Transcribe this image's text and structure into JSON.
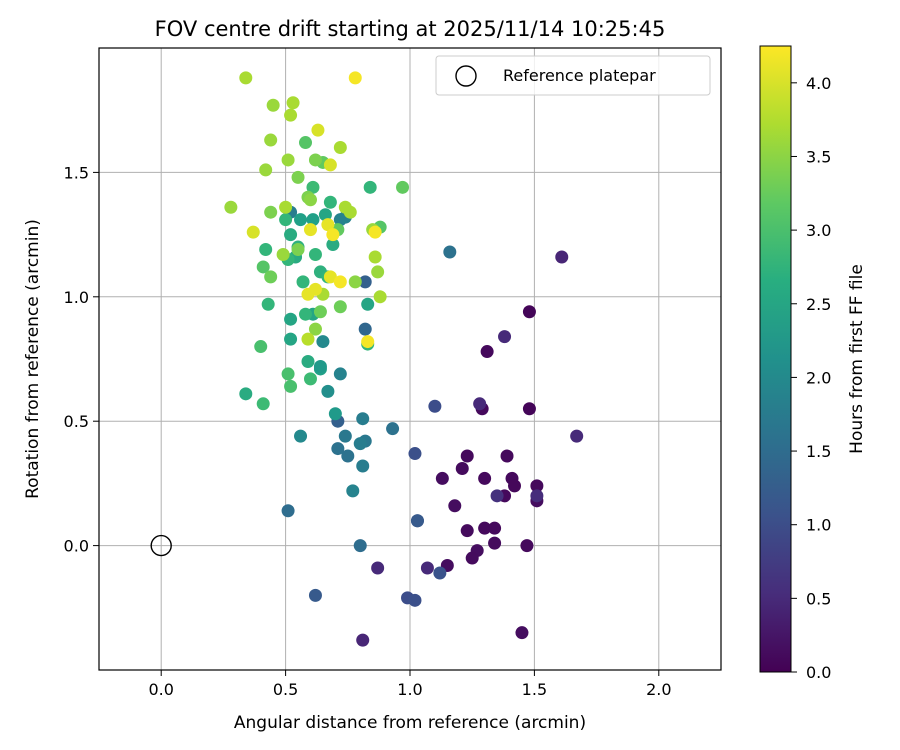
{
  "chart_data": {
    "type": "scatter",
    "title": "FOV centre drift starting at 2025/11/14 10:25:45",
    "xlabel": "Angular distance from reference (arcmin)",
    "ylabel": "Rotation from reference (arcmin)",
    "xlim": [
      -0.25,
      2.25
    ],
    "ylim": [
      -0.5,
      2.0
    ],
    "xticks": [
      "0.0",
      "0.5",
      "1.0",
      "1.5",
      "2.0"
    ],
    "yticks": [
      "0.0",
      "0.5",
      "1.0",
      "1.5"
    ],
    "grid": true,
    "legend": {
      "placement": "top-right",
      "label": "Reference platepar"
    },
    "reference_point": {
      "x": 0.0,
      "y": 0.0
    },
    "colorbar": {
      "label": "Hours from first FF file",
      "range": [
        0.0,
        4.25
      ],
      "ticks": [
        "0.0",
        "0.5",
        "1.0",
        "1.5",
        "2.0",
        "2.5",
        "3.0",
        "3.5",
        "4.0"
      ],
      "colormap": "viridis"
    },
    "points": [
      {
        "x": 1.48,
        "y": 0.94,
        "c": 0.05
      },
      {
        "x": 1.31,
        "y": 0.78,
        "c": 0.1
      },
      {
        "x": 1.48,
        "y": 0.55,
        "c": 0.05
      },
      {
        "x": 1.29,
        "y": 0.55,
        "c": 0.1
      },
      {
        "x": 1.39,
        "y": 0.36,
        "c": 0.1
      },
      {
        "x": 1.23,
        "y": 0.36,
        "c": 0.1
      },
      {
        "x": 1.21,
        "y": 0.31,
        "c": 0.12
      },
      {
        "x": 1.13,
        "y": 0.27,
        "c": 0.15
      },
      {
        "x": 1.3,
        "y": 0.27,
        "c": 0.1
      },
      {
        "x": 1.41,
        "y": 0.27,
        "c": 0.1
      },
      {
        "x": 1.42,
        "y": 0.24,
        "c": 0.08
      },
      {
        "x": 1.51,
        "y": 0.24,
        "c": 0.1
      },
      {
        "x": 1.38,
        "y": 0.2,
        "c": 0.1
      },
      {
        "x": 1.51,
        "y": 0.18,
        "c": 0.15
      },
      {
        "x": 1.18,
        "y": 0.16,
        "c": 0.15
      },
      {
        "x": 1.23,
        "y": 0.06,
        "c": 0.12
      },
      {
        "x": 1.3,
        "y": 0.07,
        "c": 0.1
      },
      {
        "x": 1.34,
        "y": 0.07,
        "c": 0.1
      },
      {
        "x": 1.34,
        "y": 0.01,
        "c": 0.12
      },
      {
        "x": 1.47,
        "y": 0.0,
        "c": 0.1
      },
      {
        "x": 1.27,
        "y": -0.02,
        "c": 0.15
      },
      {
        "x": 1.25,
        "y": -0.05,
        "c": 0.12
      },
      {
        "x": 1.15,
        "y": -0.08,
        "c": 0.15
      },
      {
        "x": 1.45,
        "y": -0.35,
        "c": 0.15
      },
      {
        "x": 1.61,
        "y": 1.16,
        "c": 0.45
      },
      {
        "x": 1.38,
        "y": 0.84,
        "c": 0.5
      },
      {
        "x": 1.28,
        "y": 0.57,
        "c": 0.5
      },
      {
        "x": 1.67,
        "y": 0.44,
        "c": 0.5
      },
      {
        "x": 1.51,
        "y": 0.2,
        "c": 0.55
      },
      {
        "x": 1.35,
        "y": 0.2,
        "c": 0.6
      },
      {
        "x": 1.07,
        "y": -0.09,
        "c": 0.5
      },
      {
        "x": 0.87,
        "y": -0.09,
        "c": 0.5
      },
      {
        "x": 0.81,
        "y": -0.38,
        "c": 0.45
      },
      {
        "x": 1.1,
        "y": 0.56,
        "c": 1.0
      },
      {
        "x": 1.02,
        "y": 0.37,
        "c": 1.05
      },
      {
        "x": 1.03,
        "y": 0.1,
        "c": 1.1
      },
      {
        "x": 1.03,
        "y": 0.1,
        "c": 1.2
      },
      {
        "x": 0.99,
        "y": -0.21,
        "c": 1.0
      },
      {
        "x": 1.02,
        "y": -0.22,
        "c": 1.05
      },
      {
        "x": 1.12,
        "y": -0.11,
        "c": 1.1
      },
      {
        "x": 0.62,
        "y": -0.2,
        "c": 1.2
      },
      {
        "x": 0.51,
        "y": 0.14,
        "c": 1.5
      },
      {
        "x": 0.8,
        "y": 0.0,
        "c": 1.5
      },
      {
        "x": 1.16,
        "y": 1.18,
        "c": 1.6
      },
      {
        "x": 0.82,
        "y": 0.87,
        "c": 1.4
      },
      {
        "x": 0.82,
        "y": 1.06,
        "c": 1.3
      },
      {
        "x": 0.93,
        "y": 0.47,
        "c": 1.6
      },
      {
        "x": 0.82,
        "y": 0.42,
        "c": 1.7
      },
      {
        "x": 0.74,
        "y": 0.44,
        "c": 1.7
      },
      {
        "x": 0.71,
        "y": 0.39,
        "c": 1.6
      },
      {
        "x": 0.75,
        "y": 0.36,
        "c": 1.6
      },
      {
        "x": 0.81,
        "y": 0.32,
        "c": 1.8
      },
      {
        "x": 0.71,
        "y": 0.5,
        "c": 1.3
      },
      {
        "x": 0.81,
        "y": 0.51,
        "c": 1.8
      },
      {
        "x": 0.8,
        "y": 0.41,
        "c": 1.8
      },
      {
        "x": 0.77,
        "y": 0.22,
        "c": 1.9
      },
      {
        "x": 0.56,
        "y": 0.44,
        "c": 2.0
      },
      {
        "x": 0.52,
        "y": 1.34,
        "c": 1.8
      },
      {
        "x": 0.65,
        "y": 0.82,
        "c": 2.0
      },
      {
        "x": 0.72,
        "y": 0.69,
        "c": 1.9
      },
      {
        "x": 0.67,
        "y": 0.62,
        "c": 2.1
      },
      {
        "x": 0.7,
        "y": 0.53,
        "c": 2.3
      },
      {
        "x": 0.72,
        "y": 1.31,
        "c": 1.9
      },
      {
        "x": 0.74,
        "y": 1.32,
        "c": 1.9
      },
      {
        "x": 0.61,
        "y": 0.93,
        "c": 2.5
      },
      {
        "x": 0.64,
        "y": 0.71,
        "c": 2.4
      },
      {
        "x": 0.64,
        "y": 0.72,
        "c": 2.3
      },
      {
        "x": 0.52,
        "y": 0.91,
        "c": 2.5
      },
      {
        "x": 0.52,
        "y": 0.83,
        "c": 2.5
      },
      {
        "x": 0.59,
        "y": 0.74,
        "c": 2.6
      },
      {
        "x": 0.61,
        "y": 1.31,
        "c": 2.4
      },
      {
        "x": 0.54,
        "y": 1.16,
        "c": 2.6
      },
      {
        "x": 0.66,
        "y": 1.33,
        "c": 2.5
      },
      {
        "x": 0.56,
        "y": 1.31,
        "c": 2.4
      },
      {
        "x": 0.69,
        "y": 1.21,
        "c": 2.6
      },
      {
        "x": 0.55,
        "y": 1.2,
        "c": 2.7
      },
      {
        "x": 0.64,
        "y": 1.1,
        "c": 2.7
      },
      {
        "x": 0.62,
        "y": 1.17,
        "c": 2.8
      },
      {
        "x": 0.67,
        "y": 1.08,
        "c": 2.8
      },
      {
        "x": 0.6,
        "y": 0.67,
        "c": 2.9
      },
      {
        "x": 0.61,
        "y": 1.44,
        "c": 2.9
      },
      {
        "x": 0.68,
        "y": 1.38,
        "c": 2.8
      },
      {
        "x": 0.52,
        "y": 1.25,
        "c": 2.6
      },
      {
        "x": 0.51,
        "y": 1.15,
        "c": 2.8
      },
      {
        "x": 0.5,
        "y": 1.31,
        "c": 2.8
      },
      {
        "x": 0.57,
        "y": 1.06,
        "c": 2.8
      },
      {
        "x": 0.58,
        "y": 0.93,
        "c": 2.8
      },
      {
        "x": 0.52,
        "y": 0.64,
        "c": 3.0
      },
      {
        "x": 0.51,
        "y": 0.69,
        "c": 3.0
      },
      {
        "x": 0.34,
        "y": 0.61,
        "c": 2.6
      },
      {
        "x": 0.41,
        "y": 0.57,
        "c": 2.9
      },
      {
        "x": 0.4,
        "y": 0.8,
        "c": 3.0
      },
      {
        "x": 0.43,
        "y": 0.97,
        "c": 2.8
      },
      {
        "x": 0.42,
        "y": 1.19,
        "c": 2.8
      },
      {
        "x": 0.41,
        "y": 1.12,
        "c": 3.1
      },
      {
        "x": 0.44,
        "y": 1.08,
        "c": 3.3
      },
      {
        "x": 0.59,
        "y": 1.4,
        "c": 3.4
      },
      {
        "x": 0.58,
        "y": 1.62,
        "c": 3.1
      },
      {
        "x": 0.84,
        "y": 1.44,
        "c": 2.8
      },
      {
        "x": 0.83,
        "y": 0.97,
        "c": 2.5
      },
      {
        "x": 0.83,
        "y": 0.81,
        "c": 2.8
      },
      {
        "x": 0.97,
        "y": 1.44,
        "c": 3.2
      },
      {
        "x": 0.88,
        "y": 1.28,
        "c": 3.1
      },
      {
        "x": 0.71,
        "y": 1.27,
        "c": 3.2
      },
      {
        "x": 0.72,
        "y": 0.96,
        "c": 3.3
      },
      {
        "x": 0.64,
        "y": 0.94,
        "c": 3.3
      },
      {
        "x": 0.55,
        "y": 1.19,
        "c": 3.4
      },
      {
        "x": 0.65,
        "y": 1.54,
        "c": 3.2
      },
      {
        "x": 0.62,
        "y": 1.55,
        "c": 3.4
      },
      {
        "x": 0.6,
        "y": 1.39,
        "c": 3.5
      },
      {
        "x": 0.55,
        "y": 1.48,
        "c": 3.4
      },
      {
        "x": 0.51,
        "y": 1.55,
        "c": 3.6
      },
      {
        "x": 0.44,
        "y": 1.34,
        "c": 3.4
      },
      {
        "x": 0.5,
        "y": 1.36,
        "c": 3.7
      },
      {
        "x": 0.49,
        "y": 1.17,
        "c": 3.6
      },
      {
        "x": 0.28,
        "y": 1.36,
        "c": 3.6
      },
      {
        "x": 0.42,
        "y": 1.51,
        "c": 3.6
      },
      {
        "x": 0.44,
        "y": 1.63,
        "c": 3.6
      },
      {
        "x": 0.45,
        "y": 1.77,
        "c": 3.6
      },
      {
        "x": 0.52,
        "y": 1.73,
        "c": 3.7
      },
      {
        "x": 0.53,
        "y": 1.78,
        "c": 3.7
      },
      {
        "x": 0.34,
        "y": 1.88,
        "c": 3.7
      },
      {
        "x": 0.72,
        "y": 1.6,
        "c": 3.7
      },
      {
        "x": 0.74,
        "y": 1.36,
        "c": 3.7
      },
      {
        "x": 0.76,
        "y": 1.34,
        "c": 3.7
      },
      {
        "x": 0.86,
        "y": 1.16,
        "c": 3.7
      },
      {
        "x": 0.87,
        "y": 1.1,
        "c": 3.6
      },
      {
        "x": 0.85,
        "y": 1.27,
        "c": 3.6
      },
      {
        "x": 0.88,
        "y": 1.0,
        "c": 3.7
      },
      {
        "x": 0.78,
        "y": 1.06,
        "c": 3.5
      },
      {
        "x": 0.62,
        "y": 0.87,
        "c": 3.5
      },
      {
        "x": 0.65,
        "y": 1.01,
        "c": 3.7
      },
      {
        "x": 0.59,
        "y": 0.83,
        "c": 3.8
      },
      {
        "x": 0.63,
        "y": 1.67,
        "c": 4.0
      },
      {
        "x": 0.68,
        "y": 1.53,
        "c": 4.0
      },
      {
        "x": 0.78,
        "y": 1.88,
        "c": 4.2
      },
      {
        "x": 0.37,
        "y": 1.26,
        "c": 4.0
      },
      {
        "x": 0.6,
        "y": 1.27,
        "c": 4.1
      },
      {
        "x": 0.67,
        "y": 1.29,
        "c": 4.1
      },
      {
        "x": 0.69,
        "y": 1.25,
        "c": 4.2
      },
      {
        "x": 0.68,
        "y": 1.08,
        "c": 4.1
      },
      {
        "x": 0.72,
        "y": 1.06,
        "c": 4.2
      },
      {
        "x": 0.62,
        "y": 1.03,
        "c": 4.1
      },
      {
        "x": 0.59,
        "y": 1.01,
        "c": 4.1
      },
      {
        "x": 0.86,
        "y": 1.26,
        "c": 4.2
      },
      {
        "x": 0.83,
        "y": 0.82,
        "c": 4.2
      }
    ]
  }
}
